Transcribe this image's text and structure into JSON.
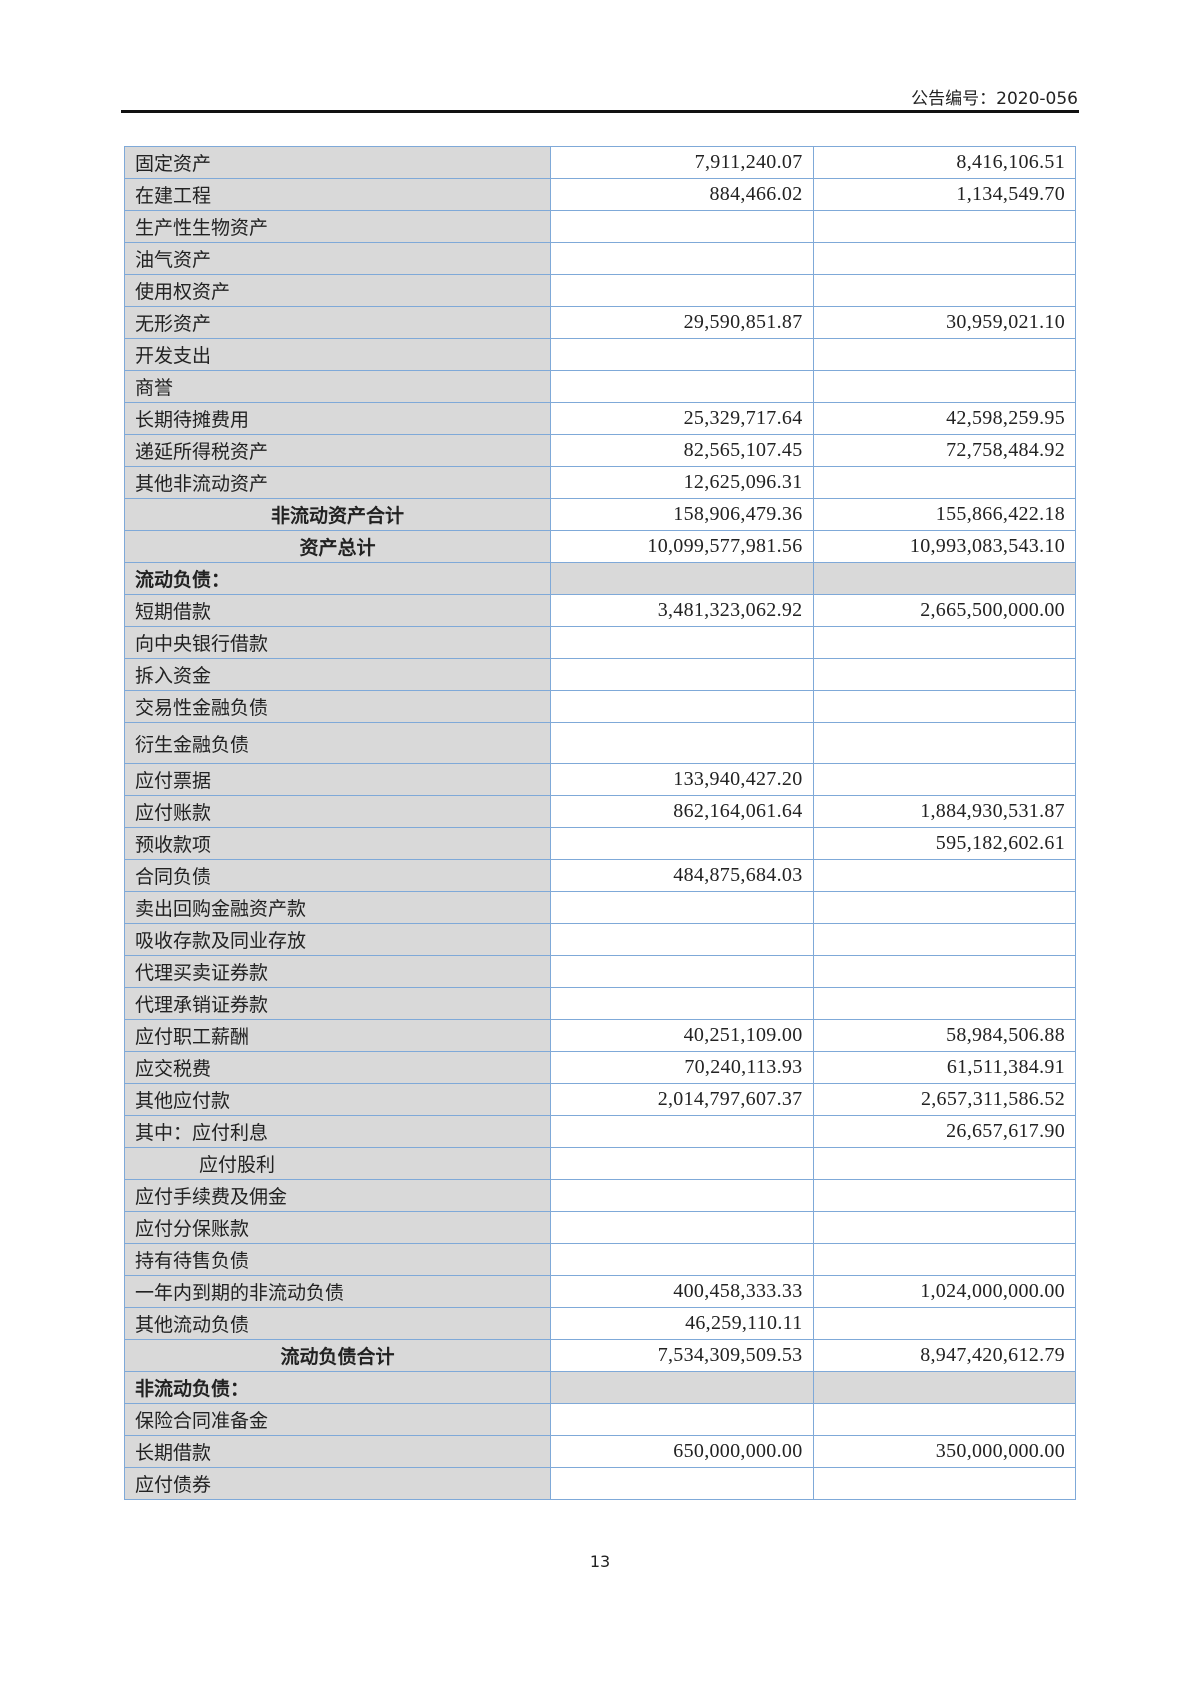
{
  "header": {
    "announcement_no": "公告编号：2020-056"
  },
  "table": {
    "rows": [
      {
        "label": "固定资产",
        "current": "7,911,240.07",
        "previous": "8,416,106.51",
        "type": "normal"
      },
      {
        "label": "在建工程",
        "current": "884,466.02",
        "previous": "1,134,549.70",
        "type": "normal"
      },
      {
        "label": "生产性生物资产",
        "current": "",
        "previous": "",
        "type": "normal"
      },
      {
        "label": "油气资产",
        "current": "",
        "previous": "",
        "type": "normal"
      },
      {
        "label": "使用权资产",
        "current": "",
        "previous": "",
        "type": "normal"
      },
      {
        "label": "无形资产",
        "current": "29,590,851.87",
        "previous": "30,959,021.10",
        "type": "normal"
      },
      {
        "label": "开发支出",
        "current": "",
        "previous": "",
        "type": "normal"
      },
      {
        "label": "商誉",
        "current": "",
        "previous": "",
        "type": "normal"
      },
      {
        "label": "长期待摊费用",
        "current": "25,329,717.64",
        "previous": "42,598,259.95",
        "type": "normal"
      },
      {
        "label": "递延所得税资产",
        "current": "82,565,107.45",
        "previous": "72,758,484.92",
        "type": "normal"
      },
      {
        "label": "其他非流动资产",
        "current": "12,625,096.31",
        "previous": "",
        "type": "normal"
      },
      {
        "label": "非流动资产合计",
        "current": "158,906,479.36",
        "previous": "155,866,422.18",
        "type": "total"
      },
      {
        "label": "资产总计",
        "current": "10,099,577,981.56",
        "previous": "10,993,083,543.10",
        "type": "total"
      },
      {
        "label": "流动负债：",
        "current": "",
        "previous": "",
        "type": "section"
      },
      {
        "label": "短期借款",
        "current": "3,481,323,062.92",
        "previous": "2,665,500,000.00",
        "type": "normal"
      },
      {
        "label": "向中央银行借款",
        "current": "",
        "previous": "",
        "type": "normal"
      },
      {
        "label": "拆入资金",
        "current": "",
        "previous": "",
        "type": "normal"
      },
      {
        "label": "交易性金融负债",
        "current": "",
        "previous": "",
        "type": "normal"
      },
      {
        "label": "衍生金融负债",
        "current": "",
        "previous": "",
        "type": "tall"
      },
      {
        "label": "应付票据",
        "current": "133,940,427.20",
        "previous": "",
        "type": "normal"
      },
      {
        "label": "应付账款",
        "current": "862,164,061.64",
        "previous": "1,884,930,531.87",
        "type": "normal"
      },
      {
        "label": "预收款项",
        "current": "",
        "previous": "595,182,602.61",
        "type": "normal"
      },
      {
        "label": "合同负债",
        "current": "484,875,684.03",
        "previous": "",
        "type": "normal"
      },
      {
        "label": "卖出回购金融资产款",
        "current": "",
        "previous": "",
        "type": "normal"
      },
      {
        "label": "吸收存款及同业存放",
        "current": "",
        "previous": "",
        "type": "normal"
      },
      {
        "label": "代理买卖证券款",
        "current": "",
        "previous": "",
        "type": "normal"
      },
      {
        "label": "代理承销证券款",
        "current": "",
        "previous": "",
        "type": "normal"
      },
      {
        "label": "应付职工薪酬",
        "current": "40,251,109.00",
        "previous": "58,984,506.88",
        "type": "normal"
      },
      {
        "label": "应交税费",
        "current": "70,240,113.93",
        "previous": "61,511,384.91",
        "type": "normal"
      },
      {
        "label": "其他应付款",
        "current": "2,014,797,607.37",
        "previous": "2,657,311,586.52",
        "type": "normal"
      },
      {
        "label": "其中：应付利息",
        "current": "",
        "previous": "26,657,617.90",
        "type": "normal"
      },
      {
        "label": "应付股利",
        "current": "",
        "previous": "",
        "type": "indent"
      },
      {
        "label": "应付手续费及佣金",
        "current": "",
        "previous": "",
        "type": "normal"
      },
      {
        "label": "应付分保账款",
        "current": "",
        "previous": "",
        "type": "normal"
      },
      {
        "label": "持有待售负债",
        "current": "",
        "previous": "",
        "type": "normal"
      },
      {
        "label": "一年内到期的非流动负债",
        "current": "400,458,333.33",
        "previous": "1,024,000,000.00",
        "type": "normal"
      },
      {
        "label": "其他流动负债",
        "current": "46,259,110.11",
        "previous": "",
        "type": "normal"
      },
      {
        "label": "流动负债合计",
        "current": "7,534,309,509.53",
        "previous": "8,947,420,612.79",
        "type": "total"
      },
      {
        "label": "非流动负债：",
        "current": "",
        "previous": "",
        "type": "section"
      },
      {
        "label": "保险合同准备金",
        "current": "",
        "previous": "",
        "type": "normal"
      },
      {
        "label": "长期借款",
        "current": "650,000,000.00",
        "previous": "350,000,000.00",
        "type": "normal"
      },
      {
        "label": "应付债券",
        "current": "",
        "previous": "",
        "type": "normal"
      }
    ]
  },
  "footer": {
    "page_number": "13"
  }
}
